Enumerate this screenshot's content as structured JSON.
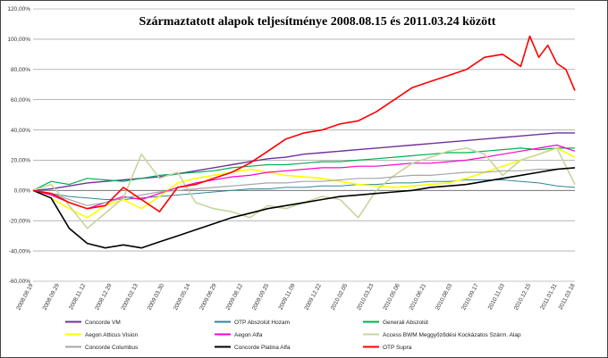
{
  "chart_data": {
    "type": "line",
    "title": "Származtatott  alapok teljesítménye 2008.08.15 és 2011.03.24 között",
    "ylim": [
      -60,
      120
    ],
    "yticks": [
      "120,00%",
      "100,00%",
      "80,00%",
      "60,00%",
      "40,00%",
      "20,00%",
      "0,00%",
      "-20,00%",
      "-40,00%",
      "-60,00%"
    ],
    "ytick_values": [
      120,
      100,
      80,
      60,
      40,
      20,
      0,
      -20,
      -40,
      -60
    ],
    "xlim": [
      0,
      60
    ],
    "xticks": [
      "2008.08.19",
      "2008.09.29",
      "2008.11.12",
      "2008.12.29",
      "2009.02.13",
      "2009.03.30",
      "2009.05.14",
      "2009.06.29",
      "2009.08.12",
      "2009.09.25",
      "2009.11.09",
      "2009.12.22",
      "2010.02.05",
      "2010.03.23",
      "2010.05.06",
      "2010.06.21",
      "2010.08.03",
      "2010.09.17",
      "2010.11.03",
      "2010.12.15",
      "2011.01.31",
      "2011.03.18"
    ],
    "xtick_positions": [
      0,
      2.9,
      5.8,
      8.7,
      11.6,
      14.5,
      17.4,
      20.3,
      23.2,
      26.1,
      29,
      31.9,
      34.8,
      37.7,
      40.6,
      43.5,
      46.4,
      49.3,
      52.2,
      55.1,
      58,
      60
    ],
    "legend_position": "bottom",
    "series": [
      {
        "name": "Concorde VM",
        "color": "#7030A0",
        "width": 1.4,
        "x": [
          0,
          2,
          4,
          6,
          8,
          10,
          12,
          14,
          16,
          18,
          20,
          22,
          24,
          26,
          28,
          30,
          32,
          34,
          36,
          38,
          40,
          42,
          44,
          46,
          48,
          50,
          52,
          54,
          56,
          58,
          60
        ],
        "y": [
          0,
          1,
          3,
          5,
          6,
          7,
          8,
          9,
          11,
          13,
          15,
          17,
          19,
          21,
          22,
          24,
          25,
          26,
          27,
          28,
          29,
          30,
          31,
          32,
          33,
          34,
          35,
          36,
          37,
          38,
          38
        ]
      },
      {
        "name": "OTP Abszolút Hozam",
        "color": "#31859C",
        "width": 1.0,
        "x": [
          0,
          2,
          4,
          6,
          8,
          10,
          12,
          14,
          16,
          18,
          20,
          22,
          24,
          26,
          28,
          30,
          32,
          34,
          36,
          38,
          40,
          42,
          44,
          46,
          48,
          50,
          52,
          54,
          56,
          58,
          60
        ],
        "y": [
          0,
          -2,
          -4,
          -5,
          -6,
          -6,
          -5,
          -4,
          -3,
          -2,
          -1,
          0,
          1,
          1,
          2,
          2,
          3,
          3,
          4,
          4,
          5,
          5,
          6,
          6,
          7,
          7,
          7,
          6,
          5,
          3,
          2
        ]
      },
      {
        "name": "Generali Abszolút",
        "color": "#00B050",
        "width": 1.2,
        "x": [
          0,
          2,
          4,
          6,
          8,
          10,
          12,
          14,
          16,
          18,
          20,
          22,
          24,
          26,
          28,
          30,
          32,
          34,
          36,
          38,
          40,
          42,
          44,
          46,
          48,
          50,
          52,
          54,
          56,
          58,
          60
        ],
        "y": [
          0,
          6,
          4,
          8,
          7,
          6,
          8,
          10,
          11,
          12,
          13,
          15,
          16,
          17,
          17,
          18,
          19,
          19,
          20,
          21,
          22,
          23,
          24,
          25,
          25,
          26,
          27,
          28,
          27,
          28,
          28
        ]
      },
      {
        "name": "Aegon Atticus Vision",
        "color": "#FFFF00",
        "width": 1.6,
        "x": [
          0,
          2,
          4,
          6,
          8,
          10,
          12,
          14,
          16,
          18,
          20,
          22,
          24,
          26,
          28,
          30,
          32,
          34,
          36,
          38,
          40,
          42,
          44,
          46,
          48,
          50,
          52,
          54,
          56,
          58,
          60
        ],
        "y": [
          0,
          -5,
          -12,
          -18,
          -10,
          -6,
          -12,
          -4,
          5,
          8,
          10,
          12,
          14,
          12,
          10,
          9,
          8,
          6,
          4,
          3,
          2,
          3,
          4,
          5,
          8,
          12,
          16,
          20,
          24,
          28,
          22
        ]
      },
      {
        "name": "Aegon Alfa",
        "color": "#FF00CC",
        "width": 1.2,
        "x": [
          0,
          2,
          4,
          6,
          8,
          10,
          12,
          14,
          16,
          18,
          20,
          22,
          24,
          26,
          28,
          30,
          32,
          34,
          36,
          38,
          40,
          42,
          44,
          46,
          48,
          50,
          52,
          54,
          56,
          58,
          60
        ],
        "y": [
          0,
          -3,
          -8,
          -12,
          -8,
          -4,
          -6,
          -2,
          2,
          5,
          7,
          9,
          10,
          12,
          13,
          14,
          15,
          15,
          16,
          16,
          17,
          18,
          18,
          19,
          20,
          22,
          24,
          26,
          28,
          30,
          26
        ]
      },
      {
        "name": "Access BWM Meggyőződési Kockázatos Szárm. Alap",
        "color": "#C4D79B",
        "width": 1.6,
        "x": [
          0,
          2,
          4,
          6,
          8,
          10,
          12,
          14,
          16,
          18,
          20,
          22,
          24,
          26,
          28,
          30,
          32,
          34,
          36,
          38,
          40,
          42,
          44,
          46,
          48,
          50,
          52,
          54,
          56,
          58,
          60
        ],
        "y": [
          0,
          4,
          -10,
          -25,
          -15,
          -5,
          24,
          8,
          12,
          -8,
          -12,
          -14,
          -18,
          -10,
          -12,
          -8,
          -4,
          -6,
          -18,
          0,
          10,
          18,
          22,
          26,
          28,
          24,
          10,
          20,
          24,
          28,
          4
        ]
      },
      {
        "name": "Concorde Columbus",
        "color": "#A6A6A6",
        "width": 1.2,
        "x": [
          0,
          2,
          4,
          6,
          8,
          10,
          12,
          14,
          16,
          18,
          20,
          22,
          24,
          26,
          28,
          30,
          32,
          34,
          36,
          38,
          40,
          42,
          44,
          46,
          48,
          50,
          52,
          54,
          56,
          58,
          60
        ],
        "y": [
          0,
          -2,
          -6,
          -10,
          -8,
          -5,
          -3,
          -1,
          0,
          1,
          2,
          3,
          4,
          5,
          5,
          6,
          6,
          7,
          8,
          8,
          9,
          10,
          10,
          11,
          12,
          12,
          13,
          13,
          14,
          14,
          15
        ]
      },
      {
        "name": "Concorde Platina Alfa",
        "color": "#000000",
        "width": 1.6,
        "x": [
          0,
          2,
          4,
          6,
          8,
          10,
          12,
          14,
          16,
          18,
          20,
          22,
          24,
          26,
          28,
          30,
          32,
          34,
          36,
          38,
          40,
          42,
          44,
          46,
          48,
          50,
          52,
          54,
          56,
          58,
          60
        ],
        "y": [
          0,
          -5,
          -25,
          -35,
          -38,
          -36,
          -38,
          -34,
          -30,
          -26,
          -22,
          -18,
          -15,
          -12,
          -10,
          -8,
          -6,
          -4,
          -3,
          -2,
          -1,
          0,
          2,
          3,
          4,
          6,
          8,
          10,
          12,
          14,
          15
        ]
      },
      {
        "name": "OTP Supra",
        "color": "#FF0000",
        "width": 1.6,
        "x": [
          0,
          2,
          4,
          6,
          8,
          10,
          12,
          14,
          16,
          18,
          20,
          22,
          24,
          26,
          28,
          30,
          32,
          34,
          36,
          38,
          40,
          42,
          44,
          46,
          48,
          50,
          52,
          54,
          55,
          56,
          57,
          58,
          59,
          60
        ],
        "y": [
          0,
          -2,
          -8,
          -12,
          -10,
          2,
          -6,
          -14,
          2,
          4,
          8,
          12,
          18,
          26,
          34,
          38,
          40,
          44,
          46,
          52,
          60,
          68,
          72,
          76,
          80,
          88,
          90,
          82,
          102,
          88,
          96,
          84,
          80,
          66
        ]
      }
    ]
  }
}
